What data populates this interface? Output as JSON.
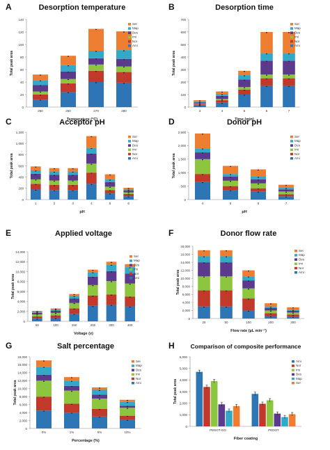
{
  "colors": {
    "Ami": "#2e75b6",
    "Nor": "#c0392b",
    "Imi": "#8cc63f",
    "Des": "#5b3a8e",
    "Map": "#33a8c7",
    "Ser": "#ed7d31"
  },
  "chart_data": [
    {
      "panel": "A",
      "type": "bar",
      "stacked": true,
      "title": "Desorption temperature",
      "xlabel": "Temperature (°C)",
      "ylabel": "Total peak area",
      "categories": [
        "250",
        "260",
        "270",
        "280"
      ],
      "ylim": [
        0,
        140
      ],
      "yticks": [
        0,
        20,
        40,
        60,
        80,
        100,
        120,
        140
      ],
      "legend": [
        "Ser",
        "Map",
        "Des",
        "Imi",
        "Nor",
        "Ami"
      ],
      "series": [
        {
          "name": "Ami",
          "values": [
            12,
            24,
            40,
            39
          ]
        },
        {
          "name": "Nor",
          "values": [
            8,
            14,
            18,
            17
          ]
        },
        {
          "name": "Imi",
          "values": [
            5,
            7,
            10,
            9
          ]
        },
        {
          "name": "Des",
          "values": [
            10,
            12,
            10,
            12
          ]
        },
        {
          "name": "Map",
          "values": [
            8,
            10,
            12,
            14
          ]
        },
        {
          "name": "Ser",
          "values": [
            9,
            15,
            35,
            30
          ]
        }
      ]
    },
    {
      "panel": "B",
      "type": "bar",
      "stacked": true,
      "title": "Desorption time",
      "xlabel": "Time (min)",
      "ylabel": "Total peak area",
      "categories": [
        "3",
        "4",
        "5",
        "6",
        "7"
      ],
      "ylim": [
        0,
        700
      ],
      "yticks": [
        0,
        100,
        200,
        300,
        400,
        500,
        600,
        700
      ],
      "legend": [
        "Ser",
        "Map",
        "Des",
        "Imi",
        "Nor",
        "Ami"
      ],
      "series": [
        {
          "name": "Ami",
          "values": [
            15,
            35,
            100,
            170,
            170
          ]
        },
        {
          "name": "Nor",
          "values": [
            8,
            20,
            40,
            60,
            60
          ]
        },
        {
          "name": "Imi",
          "values": [
            5,
            10,
            20,
            30,
            30
          ]
        },
        {
          "name": "Des",
          "values": [
            10,
            25,
            60,
            110,
            110
          ]
        },
        {
          "name": "Map",
          "values": [
            5,
            15,
            35,
            60,
            60
          ]
        },
        {
          "name": "Ser",
          "values": [
            12,
            20,
            35,
            170,
            170
          ]
        }
      ]
    },
    {
      "panel": "C",
      "type": "bar",
      "stacked": true,
      "title": "Acceptor pH",
      "xlabel": "pH",
      "ylabel": "Total peak area",
      "categories": [
        "1",
        "2",
        "3",
        "4",
        "5",
        "6"
      ],
      "ylim": [
        0,
        1200
      ],
      "yticks": [
        0,
        200,
        400,
        600,
        800,
        1000,
        1200
      ],
      "legend": [
        "Ser",
        "Map",
        "Des",
        "Imi",
        "Nor",
        "Ami"
      ],
      "series": [
        {
          "name": "Ami",
          "values": [
            180,
            170,
            170,
            280,
            110,
            60
          ]
        },
        {
          "name": "Nor",
          "values": [
            100,
            90,
            90,
            200,
            60,
            40
          ]
        },
        {
          "name": "Imi",
          "values": [
            80,
            80,
            80,
            160,
            60,
            30
          ]
        },
        {
          "name": "Des",
          "values": [
            100,
            100,
            100,
            180,
            80,
            30
          ]
        },
        {
          "name": "Map",
          "values": [
            60,
            60,
            60,
            100,
            50,
            20
          ]
        },
        {
          "name": "Ser",
          "values": [
            70,
            60,
            60,
            210,
            90,
            30
          ]
        }
      ]
    },
    {
      "panel": "D",
      "type": "bar",
      "stacked": true,
      "title": "Donor pH",
      "xlabel": "pH",
      "ylabel": "Total peak area",
      "categories": [
        "4",
        "5",
        "6",
        "7"
      ],
      "ylim": [
        0,
        2500
      ],
      "yticks": [
        0,
        500,
        1000,
        1500,
        2000,
        2500
      ],
      "legend": [
        "Ser",
        "Map",
        "Des",
        "Imi",
        "Nor",
        "Ami"
      ],
      "series": [
        {
          "name": "Ami",
          "values": [
            650,
            350,
            300,
            120
          ]
        },
        {
          "name": "Nor",
          "values": [
            300,
            150,
            120,
            80
          ]
        },
        {
          "name": "Imi",
          "values": [
            550,
            200,
            180,
            100
          ]
        },
        {
          "name": "Des",
          "values": [
            250,
            150,
            150,
            80
          ]
        },
        {
          "name": "Map",
          "values": [
            150,
            100,
            100,
            60
          ]
        },
        {
          "name": "Ser",
          "values": [
            550,
            300,
            270,
            110
          ]
        }
      ]
    },
    {
      "panel": "E",
      "type": "bar",
      "stacked": true,
      "title": "Applied voltage",
      "xlabel": "Voltage (v)",
      "ylabel": "Total peak area",
      "categories": [
        "50",
        "100",
        "150",
        "200",
        "300",
        "400"
      ],
      "ylim": [
        0,
        14000
      ],
      "yticks": [
        0,
        2000,
        4000,
        6000,
        8000,
        10000,
        12000,
        14000
      ],
      "legend": [
        "Ser",
        "Map",
        "Des",
        "Imi",
        "Nor",
        "Ami"
      ],
      "series": [
        {
          "name": "Ami",
          "values": [
            600,
            700,
            1500,
            3100,
            3300,
            3000
          ]
        },
        {
          "name": "Nor",
          "values": [
            400,
            500,
            1100,
            2100,
            2100,
            2000
          ]
        },
        {
          "name": "Imi",
          "values": [
            400,
            500,
            1100,
            2100,
            2700,
            2600
          ]
        },
        {
          "name": "Des",
          "values": [
            300,
            400,
            900,
            1700,
            2000,
            2000
          ]
        },
        {
          "name": "Map",
          "values": [
            200,
            300,
            500,
            900,
            1300,
            1300
          ]
        },
        {
          "name": "Ser",
          "values": [
            200,
            200,
            400,
            500,
            600,
            600
          ]
        }
      ]
    },
    {
      "panel": "F",
      "type": "bar",
      "stacked": true,
      "title": "Donor flow rate",
      "xlabel": "Flow rate (µL min⁻¹)",
      "ylabel": "Total peak area",
      "categories": [
        "25",
        "50",
        "100",
        "200",
        "300"
      ],
      "ylim": [
        0,
        18000
      ],
      "yticks": [
        0,
        2000,
        4000,
        6000,
        8000,
        10000,
        12000,
        14000,
        16000,
        18000
      ],
      "legend": [
        "Ser",
        "Map",
        "Des",
        "Imi",
        "Nor",
        "Ami"
      ],
      "series": [
        {
          "name": "Ami",
          "values": [
            3000,
            3000,
            2000,
            600,
            500
          ]
        },
        {
          "name": "Nor",
          "values": [
            4000,
            4000,
            3000,
            700,
            500
          ]
        },
        {
          "name": "Imi",
          "values": [
            3500,
            3500,
            2500,
            700,
            500
          ]
        },
        {
          "name": "Des",
          "values": [
            3500,
            3500,
            2000,
            600,
            400
          ]
        },
        {
          "name": "Map",
          "values": [
            1500,
            1500,
            1000,
            400,
            300
          ]
        },
        {
          "name": "Ser",
          "values": [
            1500,
            1500,
            1500,
            800,
            600
          ]
        }
      ]
    },
    {
      "panel": "G",
      "type": "bar",
      "stacked": true,
      "title": "Salt percentage",
      "xlabel": "Percentage (%)",
      "ylabel": "Total peak area",
      "categories": [
        "0%",
        "1%",
        "5%",
        "10%"
      ],
      "ylim": [
        0,
        18000
      ],
      "yticks": [
        0,
        2000,
        4000,
        6000,
        8000,
        10000,
        12000,
        14000,
        16000,
        18000
      ],
      "legend": [
        "Ser",
        "Map",
        "Des",
        "Imi",
        "Nor",
        "Ami"
      ],
      "series": [
        {
          "name": "Ami",
          "values": [
            4500,
            4000,
            3000,
            2200
          ]
        },
        {
          "name": "Nor",
          "values": [
            3500,
            2200,
            1900,
            1000
          ]
        },
        {
          "name": "Imi",
          "values": [
            4000,
            3300,
            2600,
            2000
          ]
        },
        {
          "name": "Des",
          "values": [
            1500,
            1200,
            1000,
            500
          ]
        },
        {
          "name": "Map",
          "values": [
            2000,
            1300,
            1200,
            1000
          ]
        },
        {
          "name": "Ser",
          "values": [
            1600,
            900,
            600,
            500
          ]
        }
      ]
    },
    {
      "panel": "H",
      "type": "bar",
      "stacked": false,
      "title": "Comparison of composite performance",
      "xlabel": "Fiber coating",
      "ylabel": "Total peak area",
      "categories": [
        "PEDOT-GO",
        "PEDOT"
      ],
      "ylim": [
        0,
        6000
      ],
      "yticks": [
        0,
        1000,
        2000,
        3000,
        4000,
        5000,
        6000
      ],
      "legend": [
        "Ami",
        "Nor",
        "Imi",
        "Des",
        "Map",
        "Ser"
      ],
      "series": [
        {
          "name": "Ami",
          "values": [
            4700,
            2800
          ]
        },
        {
          "name": "Nor",
          "values": [
            3400,
            1950
          ]
        },
        {
          "name": "Imi",
          "values": [
            3900,
            2250
          ]
        },
        {
          "name": "Des",
          "values": [
            1900,
            1100
          ]
        },
        {
          "name": "Map",
          "values": [
            1350,
            800
          ]
        },
        {
          "name": "Ser",
          "values": [
            1750,
            1050
          ]
        }
      ]
    }
  ]
}
